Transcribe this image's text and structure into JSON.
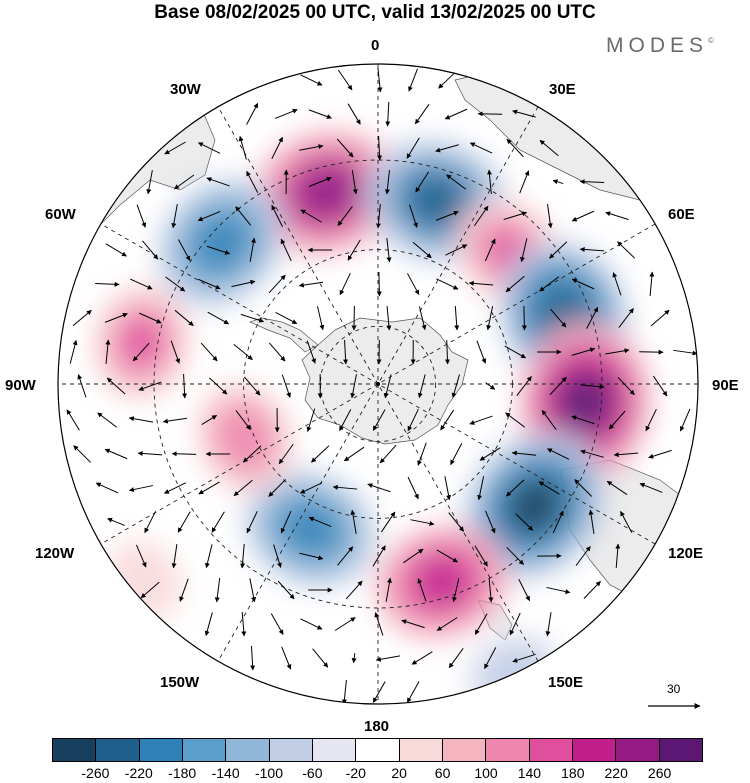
{
  "title": "Base 08/02/2025 00 UTC, valid 13/02/2025 00 UTC",
  "brand": "MODES",
  "brand_mark": "©",
  "longitude_labels": {
    "top": "0",
    "lon30e": "30E",
    "lon60e": "60E",
    "lon90e": "90E",
    "lon120e": "120E",
    "lon150e": "150E",
    "bottom": "180",
    "lon150w": "150W",
    "lon120w": "120W",
    "lon90w": "90W",
    "lon60w": "60W",
    "lon30w": "30W"
  },
  "vector_scale": {
    "label": "30"
  },
  "legend": {
    "colors": [
      "#173f5e",
      "#1f5f8c",
      "#2f80b7",
      "#5a9ecb",
      "#90b6d8",
      "#c2cee6",
      "#e6e6f2",
      "#ffffff",
      "#f9dadb",
      "#f4b5c1",
      "#ef86ad",
      "#e04f9d",
      "#c31f8c",
      "#931b83",
      "#5c1673"
    ],
    "ticks": [
      "-260",
      "-220",
      "-180",
      "-140",
      "-100",
      "-60",
      "-20",
      "20",
      "60",
      "100",
      "140",
      "180",
      "220",
      "260"
    ]
  },
  "anomaly_centers": [
    {
      "lon": -15,
      "lat_ring": 0.62,
      "value": 240
    },
    {
      "lon": 18,
      "lat_ring": 0.6,
      "value": -230
    },
    {
      "lon": 45,
      "lat_ring": 0.58,
      "value": 150
    },
    {
      "lon": 70,
      "lat_ring": 0.62,
      "value": -250
    },
    {
      "lon": 95,
      "lat_ring": 0.65,
      "value": 270
    },
    {
      "lon": 128,
      "lat_ring": 0.62,
      "value": -260
    },
    {
      "lon": 162,
      "lat_ring": 0.65,
      "value": 200
    },
    {
      "lon": -155,
      "lat_ring": 0.5,
      "value": -200
    },
    {
      "lon": -112,
      "lat_ring": 0.45,
      "value": 140
    },
    {
      "lon": -80,
      "lat_ring": 0.75,
      "value": 150
    },
    {
      "lon": -48,
      "lat_ring": 0.66,
      "value": -210
    },
    {
      "lon": 155,
      "lat_ring": 1.0,
      "value": -90
    },
    {
      "lon": -130,
      "lat_ring": 0.95,
      "value": 60
    }
  ]
}
